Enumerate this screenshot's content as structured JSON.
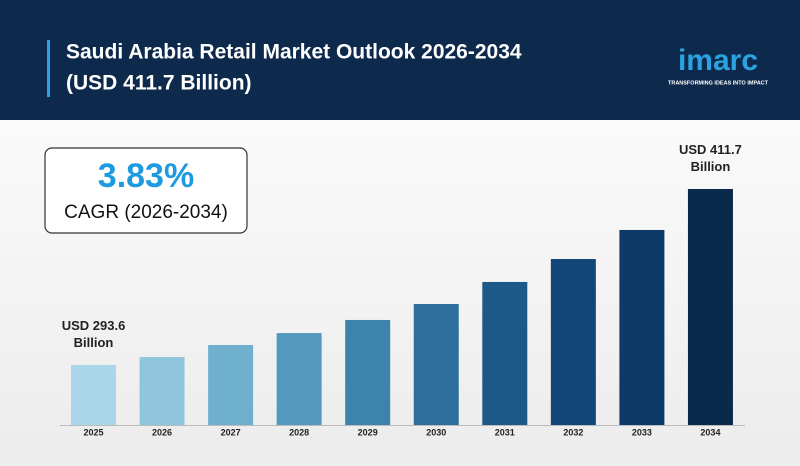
{
  "chart_data": {
    "type": "bar",
    "title": "Saudi Arabia Retail Market Outlook 2026-2034",
    "subtitle": "(USD 411.7 Billion)",
    "brand": "imarc",
    "tagline": "TRANSFORMING IDEAS INTO IMPACT",
    "cagr_value": "3.83%",
    "cagr_label": "CAGR (2026-2034)",
    "categories": [
      "2025",
      "2026",
      "2027",
      "2028",
      "2029",
      "2030",
      "2031",
      "2032",
      "2033",
      "2034"
    ],
    "values": [
      293.6,
      298.9,
      307.0,
      315.0,
      323.8,
      334.5,
      349.3,
      364.7,
      384.2,
      411.7
    ],
    "value_labels": [
      "USD 293.6 Billion",
      null,
      null,
      null,
      null,
      null,
      null,
      null,
      null,
      "USD 411.7 Billion"
    ],
    "colors": [
      "#a9d6e8",
      "#8fc6de",
      "#6fb0cf",
      "#5399bd",
      "#3c84ab",
      "#2d6f9a",
      "#1c5888",
      "#134678",
      "#0d3a67",
      "#0a2a4c"
    ],
    "ylim": [
      253.3,
      411.7
    ]
  }
}
